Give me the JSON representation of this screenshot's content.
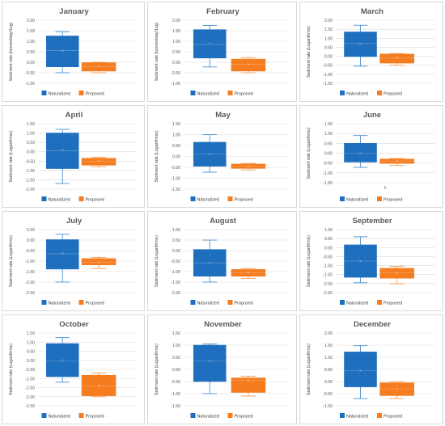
{
  "colors": {
    "naturalized": "#1f6fbf",
    "proposed": "#f57c1f",
    "whisker": "#5b9bd5",
    "whisker_orange": "#f4a460",
    "grid": "#d9d9d9",
    "text": "#595959"
  },
  "chart_data": [
    {
      "type": "box",
      "title": "January",
      "ylabel": "Sediment rate (tonnes/day/1og)",
      "ylim": [
        -1.0,
        2.0
      ],
      "yticks": [
        "2.00",
        "1.50",
        "1.00",
        "0.50",
        "0.00",
        "-0.50",
        "-1.00"
      ],
      "ytick_values": [
        2,
        1.5,
        1,
        0.5,
        0,
        -0.5,
        -1
      ],
      "legend": [
        "Naturalized",
        "Proposed"
      ],
      "xtick": "",
      "series": [
        {
          "name": "Naturalized",
          "min": -0.5,
          "q1": -0.22,
          "median": 0.55,
          "q3": 1.25,
          "max": 1.45,
          "mean": 0.55
        },
        {
          "name": "Proposed",
          "min": -0.5,
          "q1": -0.42,
          "median": -0.2,
          "q3": -0.02,
          "max": 0.0,
          "mean": -0.2
        }
      ]
    },
    {
      "type": "box",
      "title": "February",
      "ylabel": "Sediment rate (tonnes/day/1og)",
      "ylim": [
        -1.0,
        2.0
      ],
      "yticks": [
        "2.00",
        "1.50",
        "1.00",
        "0.50",
        "0.00",
        "-0.50",
        "-1.00"
      ],
      "ytick_values": [
        2,
        1.5,
        1,
        0.5,
        0,
        -0.5,
        -1
      ],
      "legend": [
        "Naturalized",
        "Proposed"
      ],
      "xtick": "",
      "series": [
        {
          "name": "Naturalized",
          "min": -0.22,
          "q1": 0.2,
          "median": 0.85,
          "q3": 1.55,
          "max": 1.75,
          "mean": 0.9
        },
        {
          "name": "Proposed",
          "min": -0.5,
          "q1": -0.42,
          "median": -0.1,
          "q3": 0.15,
          "max": 0.22,
          "mean": -0.1
        }
      ]
    },
    {
      "type": "box",
      "title": "March",
      "ylabel": "Sediment rate (Logarithmic)",
      "ylim": [
        -1.5,
        2.0
      ],
      "yticks": [
        "2.00",
        "1.50",
        "1.00",
        "0.50",
        "0.00",
        "-0.50",
        "-1.00",
        "-1.50"
      ],
      "ytick_values": [
        2,
        1.5,
        1,
        0.5,
        0,
        -0.5,
        -1,
        -1.5
      ],
      "legend": [
        "Naturalized",
        "Proposed"
      ],
      "xtick": "",
      "series": [
        {
          "name": "Naturalized",
          "min": -0.55,
          "q1": -0.02,
          "median": 0.7,
          "q3": 1.35,
          "max": 1.72,
          "mean": 0.7
        },
        {
          "name": "Proposed",
          "min": -0.5,
          "q1": -0.38,
          "median": -0.1,
          "q3": 0.12,
          "max": 0.15,
          "mean": -0.1
        }
      ]
    },
    {
      "type": "box",
      "title": "April",
      "ylabel": "Sediment rate (Logarithmic)",
      "ylim": [
        -2.0,
        1.5
      ],
      "yticks": [
        "1.50",
        "1.00",
        "0.50",
        "0.00",
        "-0.50",
        "-1.00",
        "-1.50",
        "-2.00"
      ],
      "ytick_values": [
        1.5,
        1,
        0.5,
        0,
        -0.5,
        -1,
        -1.5,
        -2
      ],
      "legend": [
        "Naturalized",
        "Proposed"
      ],
      "xtick": "",
      "series": [
        {
          "name": "Naturalized",
          "min": -1.7,
          "q1": -0.9,
          "median": 0.05,
          "q3": 1.0,
          "max": 1.2,
          "mean": 0.1
        },
        {
          "name": "Proposed",
          "min": -0.8,
          "q1": -0.72,
          "median": -0.5,
          "q3": -0.35,
          "max": -0.3,
          "mean": -0.5
        }
      ]
    },
    {
      "type": "box",
      "title": "May",
      "ylabel": "Sediment rate (Logarithmic)",
      "ylim": [
        -1.5,
        1.5
      ],
      "yticks": [
        "1.50",
        "1.00",
        "0.50",
        "0.00",
        "-0.50",
        "-1.00",
        "-1.50"
      ],
      "ytick_values": [
        1.5,
        1,
        0.5,
        0,
        -0.5,
        -1,
        -1.5
      ],
      "legend": [
        "Naturalized",
        "Proposed"
      ],
      "xtick": "",
      "series": [
        {
          "name": "Naturalized",
          "min": -0.72,
          "q1": -0.45,
          "median": 0.12,
          "q3": 0.65,
          "max": 1.0,
          "mean": 0.1
        },
        {
          "name": "Proposed",
          "min": -0.62,
          "q1": -0.55,
          "median": -0.45,
          "q3": -0.35,
          "max": -0.32,
          "mean": -0.45
        }
      ]
    },
    {
      "type": "box",
      "title": "June",
      "ylabel": "Sediment rate (Logarithmic)",
      "ylim": [
        -1.5,
        1.5
      ],
      "yticks": [
        "1.50",
        "1.00",
        "0.50",
        "0.00",
        "-0.50",
        "-1.00",
        "-1.50"
      ],
      "ytick_values": [
        1.5,
        1,
        0.5,
        0,
        -0.5,
        -1,
        -1.5
      ],
      "legend": [
        "Naturalized",
        "Proposed"
      ],
      "xtick": "1",
      "series": [
        {
          "name": "Naturalized",
          "min": -0.72,
          "q1": -0.45,
          "median": 0.0,
          "q3": 0.5,
          "max": 0.9,
          "mean": 0.0
        },
        {
          "name": "Proposed",
          "min": -0.62,
          "q1": -0.52,
          "median": -0.4,
          "q3": -0.3,
          "max": -0.27,
          "mean": -0.4
        }
      ]
    },
    {
      "type": "box",
      "title": "July",
      "ylabel": "Sediment rate (Logarithmic)",
      "ylim": [
        -2.5,
        0.5
      ],
      "yticks": [
        "0.50",
        "0.00",
        "-0.50",
        "-1.00",
        "-1.50",
        "-2.00",
        "-2.50"
      ],
      "ytick_values": [
        0.5,
        0,
        -0.5,
        -1,
        -1.5,
        -2,
        -2.5
      ],
      "legend": [
        "Naturalized",
        "Proposed"
      ],
      "xtick": "",
      "series": [
        {
          "name": "Naturalized",
          "min": -2.0,
          "q1": -1.38,
          "median": -0.65,
          "q3": 0.02,
          "max": 0.28,
          "mean": -0.65
        },
        {
          "name": "Proposed",
          "min": -1.35,
          "q1": -1.18,
          "median": -1.05,
          "q3": -0.88,
          "max": -0.82,
          "mean": -1.05
        }
      ]
    },
    {
      "type": "box",
      "title": "August",
      "ylabel": "Sediment rate (Logarithmic)",
      "ylim": [
        -2.0,
        1.0
      ],
      "yticks": [
        "1.00",
        "0.50",
        "0.00",
        "-0.50",
        "-1.00",
        "-1.50",
        "-2.00"
      ],
      "ytick_values": [
        1,
        0.5,
        0,
        -0.5,
        -1,
        -1.5,
        -2
      ],
      "legend": [
        "Naturalized",
        "Proposed"
      ],
      "xtick": "",
      "series": [
        {
          "name": "Naturalized",
          "min": -1.5,
          "q1": -1.22,
          "median": -0.58,
          "q3": 0.05,
          "max": 0.5,
          "mean": -0.6
        },
        {
          "name": "Proposed",
          "min": -1.32,
          "q1": -1.22,
          "median": -1.05,
          "q3": -0.9,
          "max": -0.85,
          "mean": -1.05
        }
      ]
    },
    {
      "type": "box",
      "title": "September",
      "ylabel": "Sediment rate (Logarithmic)",
      "ylim": [
        -2.5,
        1.0
      ],
      "yticks": [
        "1.00",
        "0.50",
        "0.00",
        "-0.50",
        "-1.00",
        "-1.50",
        "-2.00",
        "-2.50"
      ],
      "ytick_values": [
        1,
        0.5,
        0,
        -0.5,
        -1,
        -1.5,
        -2,
        -2.5
      ],
      "legend": [
        "Naturalized",
        "Proposed"
      ],
      "xtick": "",
      "series": [
        {
          "name": "Naturalized",
          "min": -1.95,
          "q1": -1.65,
          "median": -0.75,
          "q3": 0.15,
          "max": 0.6,
          "mean": -0.75
        },
        {
          "name": "Proposed",
          "min": -2.0,
          "q1": -1.7,
          "median": -1.4,
          "q3": -1.15,
          "max": -1.05,
          "mean": -1.4
        }
      ]
    },
    {
      "type": "box",
      "title": "October",
      "ylabel": "Sediment rate (Logarithmic)",
      "ylim": [
        -2.5,
        1.5
      ],
      "yticks": [
        "1.50",
        "1.00",
        "0.50",
        "0.00",
        "-0.50",
        "-1.00",
        "-1.50",
        "-2.00",
        "-2.50"
      ],
      "ytick_values": [
        1.5,
        1,
        0.5,
        0,
        -0.5,
        -1,
        -1.5,
        -2,
        -2.5
      ],
      "legend": [
        "Naturalized",
        "Proposed"
      ],
      "xtick": "",
      "series": [
        {
          "name": "Naturalized",
          "min": -1.2,
          "q1": -0.9,
          "median": -0.05,
          "q3": 0.92,
          "max": 1.25,
          "mean": 0.0
        },
        {
          "name": "Proposed",
          "min": -2.0,
          "q1": -1.95,
          "median": -1.4,
          "q3": -0.82,
          "max": -0.7,
          "mean": -1.4
        }
      ]
    },
    {
      "type": "box",
      "title": "November",
      "ylabel": "Sediment rate (Logarithmic)",
      "ylim": [
        -1.5,
        1.5
      ],
      "yticks": [
        "1.50",
        "1.00",
        "0.50",
        "0.00",
        "-0.50",
        "-1.00",
        "-1.50"
      ],
      "ytick_values": [
        1.5,
        1,
        0.5,
        0,
        -0.5,
        -1,
        -1.5
      ],
      "legend": [
        "Naturalized",
        "Proposed"
      ],
      "xtick": "",
      "series": [
        {
          "name": "Naturalized",
          "min": -1.0,
          "q1": -0.5,
          "median": 0.35,
          "q3": 1.0,
          "max": 1.05,
          "mean": 0.35
        },
        {
          "name": "Proposed",
          "min": -1.1,
          "q1": -0.95,
          "median": -0.45,
          "q3": -0.35,
          "max": -0.28,
          "mean": -0.45
        }
      ]
    },
    {
      "type": "box",
      "title": "December",
      "ylabel": "Sediment rate (Logarithmic)",
      "ylim": [
        -1.0,
        2.0
      ],
      "yticks": [
        "2.00",
        "1.50",
        "1.00",
        "0.50",
        "0.00",
        "-0.50",
        "-1.00"
      ],
      "ytick_values": [
        2,
        1.5,
        1,
        0.5,
        0,
        -0.5,
        -1
      ],
      "legend": [
        "Naturalized",
        "Proposed"
      ],
      "xtick": "",
      "series": [
        {
          "name": "Naturalized",
          "min": -0.7,
          "q1": -0.22,
          "median": 0.45,
          "q3": 1.22,
          "max": 1.48,
          "mean": 0.45
        },
        {
          "name": "Proposed",
          "min": -0.7,
          "q1": -0.58,
          "median": -0.3,
          "q3": -0.05,
          "max": 0.0,
          "mean": -0.3
        }
      ]
    }
  ]
}
